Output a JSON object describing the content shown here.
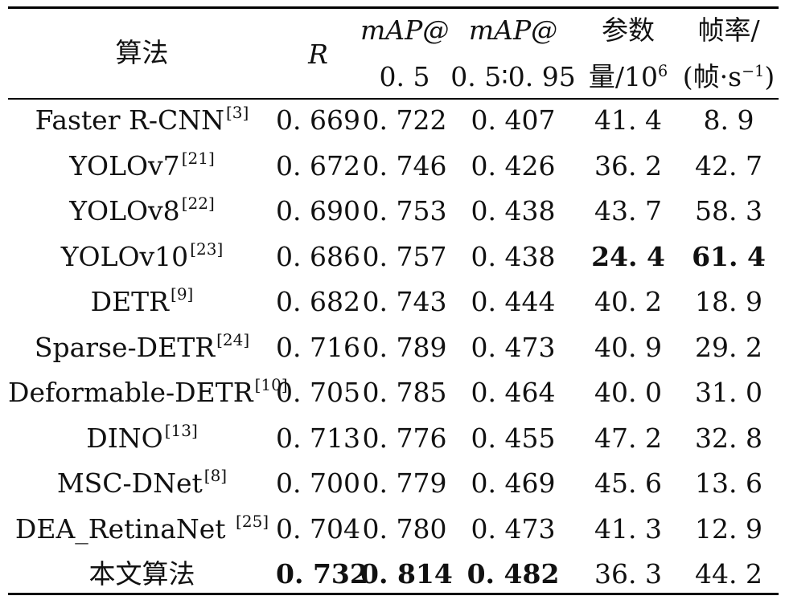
{
  "table": {
    "header": {
      "algo": "算法",
      "r": "R",
      "map50_top": "mAP@",
      "map50_bot": "0. 5",
      "map5095_top": "mAP@",
      "map5095_bot": "0. 5∶0. 95",
      "params_top": "参数",
      "params_bot_pre": "量/10",
      "params_bot_exp": "6",
      "fps_top": "帧率/",
      "fps_bot_pre": "(帧·s",
      "fps_bot_exp": "−1",
      "fps_bot_post": ")"
    },
    "rows": [
      {
        "name": "Faster R-CNN",
        "ref": "[3]",
        "r": "0. 669",
        "map50": "0. 722",
        "map5095": "0. 407",
        "params": "41. 4",
        "fps": "8. 9"
      },
      {
        "name": "YOLOv7",
        "ref": "[21]",
        "r": "0. 672",
        "map50": "0. 746",
        "map5095": "0. 426",
        "params": "36. 2",
        "fps": "42. 7"
      },
      {
        "name": "YOLOv8",
        "ref": "[22]",
        "r": "0. 690",
        "map50": "0. 753",
        "map5095": "0. 438",
        "params": "43. 7",
        "fps": "58. 3"
      },
      {
        "name": "YOLOv10",
        "ref": "[23]",
        "r": "0. 686",
        "map50": "0. 757",
        "map5095": "0. 438",
        "params": "24. 4",
        "fps": "61. 4"
      },
      {
        "name": "DETR",
        "ref": "[9]",
        "r": "0. 682",
        "map50": "0. 743",
        "map5095": "0. 444",
        "params": "40. 2",
        "fps": "18. 9"
      },
      {
        "name": "Sparse-DETR",
        "ref": "[24]",
        "r": "0. 716",
        "map50": "0. 789",
        "map5095": "0. 473",
        "params": "40. 9",
        "fps": "29. 2"
      },
      {
        "name": "Deformable-DETR",
        "ref": "[10]",
        "r": "0. 705",
        "map50": "0. 785",
        "map5095": "0. 464",
        "params": "40. 0",
        "fps": "31. 0"
      },
      {
        "name": "DINO",
        "ref": "[13]",
        "r": "0. 713",
        "map50": "0. 776",
        "map5095": "0. 455",
        "params": "47. 2",
        "fps": "32. 8"
      },
      {
        "name": "MSC-DNet",
        "ref": "[8]",
        "r": "0. 700",
        "map50": "0. 779",
        "map5095": "0. 469",
        "params": "45. 6",
        "fps": "13. 6"
      },
      {
        "name": "DEA_RetinaNet ",
        "ref": "[25]",
        "r": "0. 704",
        "map50": "0. 780",
        "map5095": "0. 473",
        "params": "41. 3",
        "fps": "12. 9"
      },
      {
        "name": "本文算法",
        "ref": "",
        "r": "0. 732",
        "map50": "0. 814",
        "map5095": "0. 482",
        "params": "36. 3",
        "fps": "44. 2"
      }
    ]
  }
}
